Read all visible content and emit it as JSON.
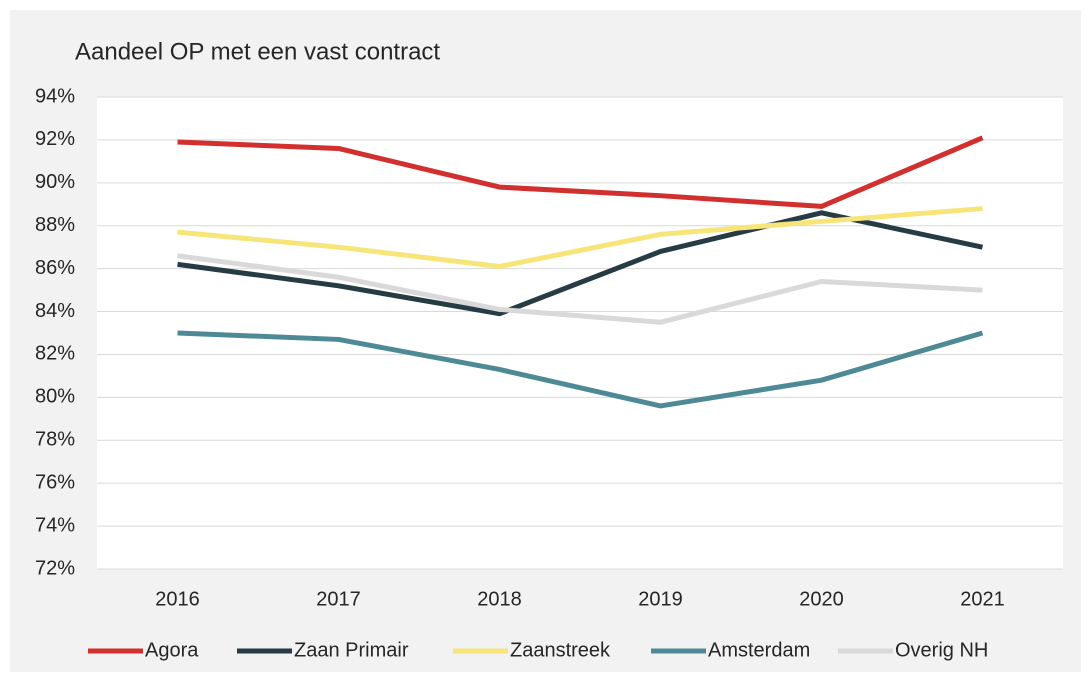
{
  "chart_data": {
    "type": "line",
    "title": "Aandeel OP met een vast contract",
    "categories": [
      "2016",
      "2017",
      "2018",
      "2019",
      "2020",
      "2021"
    ],
    "series": [
      {
        "name": "Agora",
        "color": "#d1302f",
        "values": [
          91.9,
          91.6,
          89.8,
          89.4,
          88.9,
          92.1
        ]
      },
      {
        "name": "Zaan Primair",
        "color": "#263b44",
        "values": [
          86.2,
          85.2,
          83.9,
          86.8,
          88.6,
          87.0
        ]
      },
      {
        "name": "Zaanstreek",
        "color": "#f7e57a",
        "values": [
          87.7,
          87.0,
          86.1,
          87.6,
          88.2,
          88.8
        ]
      },
      {
        "name": "Amsterdam",
        "color": "#4e8a96",
        "values": [
          83.0,
          82.7,
          81.3,
          79.6,
          80.8,
          83.0
        ]
      },
      {
        "name": "Overig NH",
        "color": "#d9d9d9",
        "values": [
          86.6,
          85.6,
          84.1,
          83.5,
          85.4,
          85.0
        ]
      }
    ],
    "ylim": [
      72,
      94
    ],
    "yticks": [
      {
        "value": 72,
        "label": "72%"
      },
      {
        "value": 74,
        "label": "74%"
      },
      {
        "value": 76,
        "label": "76%"
      },
      {
        "value": 78,
        "label": "78%"
      },
      {
        "value": 80,
        "label": "80%"
      },
      {
        "value": 82,
        "label": "82%"
      },
      {
        "value": 84,
        "label": "84%"
      },
      {
        "value": 86,
        "label": "86%"
      },
      {
        "value": 88,
        "label": "88%"
      },
      {
        "value": 90,
        "label": "90%"
      },
      {
        "value": 92,
        "label": "92%"
      },
      {
        "value": 94,
        "label": "94%"
      }
    ],
    "grid": true,
    "legend": "bottom"
  }
}
